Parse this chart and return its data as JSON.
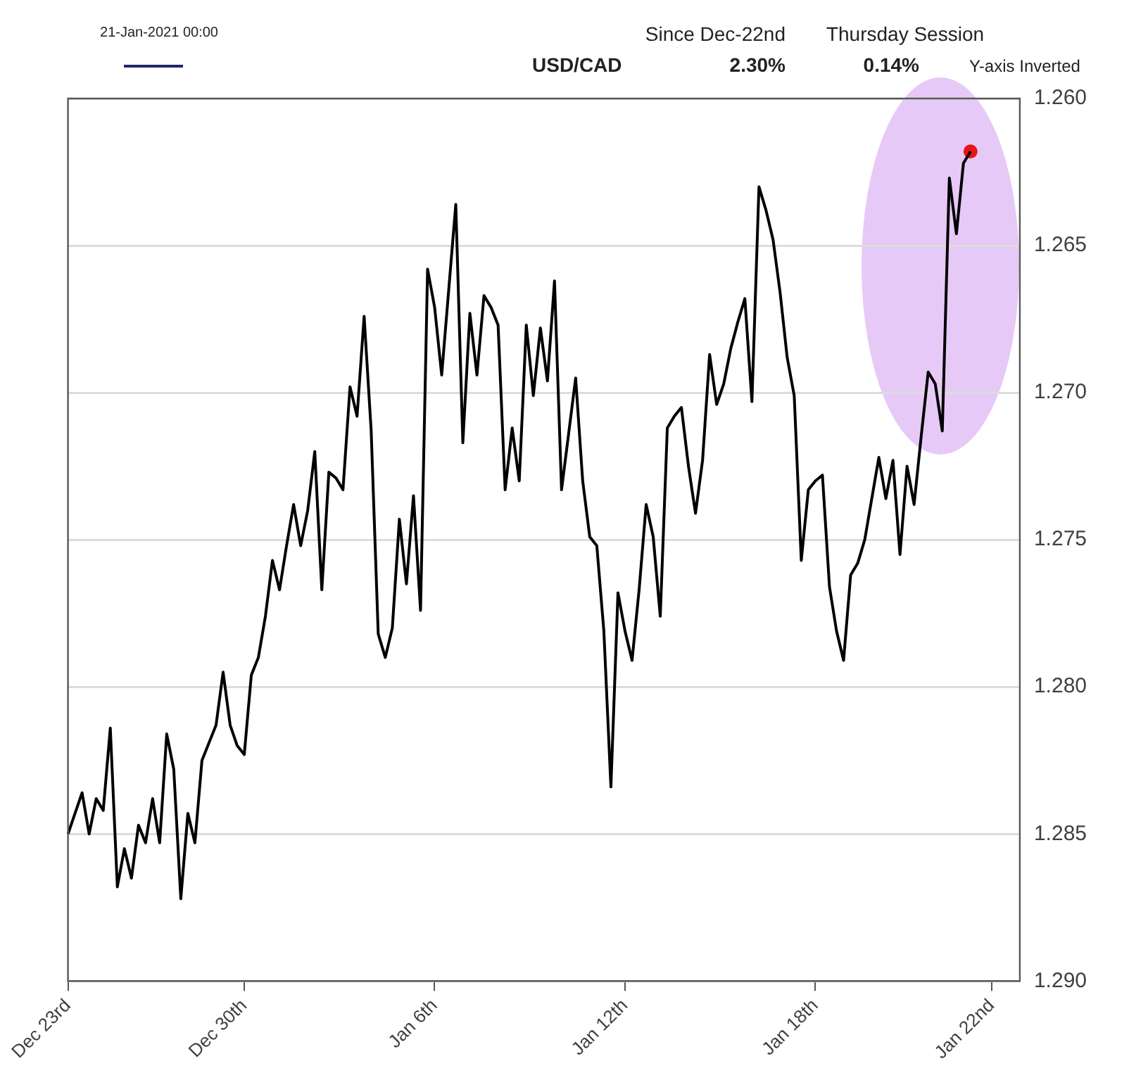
{
  "chart_data": {
    "type": "line",
    "annotations": [
      "21-Jan-2021 00:00",
      "Since Dec-22nd",
      "Thursday Session",
      "USD/CAD",
      "2.30%",
      "0.14%",
      "Y-axis Inverted"
    ],
    "categories": [
      "Dec 23rd",
      null,
      null,
      null,
      null,
      null,
      null,
      null,
      null,
      null,
      null,
      null,
      null,
      null,
      null,
      null,
      null,
      null,
      null,
      null,
      null,
      null,
      null,
      null,
      null,
      "Dec 30th",
      null,
      null,
      null,
      null,
      null,
      null,
      null,
      null,
      null,
      null,
      null,
      null,
      null,
      null,
      null,
      null,
      null,
      null,
      null,
      null,
      null,
      null,
      null,
      null,
      null,
      null,
      "Jan 6th",
      null,
      null,
      null,
      null,
      null,
      null,
      null,
      null,
      null,
      null,
      null,
      null,
      null,
      null,
      null,
      null,
      null,
      null,
      null,
      null,
      null,
      null,
      null,
      null,
      null,
      null,
      "Jan 12th",
      null,
      null,
      null,
      null,
      null,
      null,
      null,
      null,
      null,
      null,
      null,
      null,
      null,
      null,
      null,
      null,
      null,
      null,
      null,
      null,
      null,
      null,
      null,
      null,
      null,
      null,
      "Jan 18th",
      null,
      null,
      null,
      null,
      null,
      null,
      null,
      null,
      null,
      null,
      null,
      null,
      null,
      null,
      null,
      null,
      null,
      null,
      null,
      null,
      null,
      null,
      null,
      null,
      "Jan 22nd",
      null,
      null,
      null,
      null
    ],
    "series": [
      {
        "color": "#000000",
        "marker": "none",
        "values": [
          1.285,
          1.2843,
          1.2836,
          1.285,
          1.2838,
          1.2842,
          1.2814,
          1.2868,
          1.2855,
          1.2865,
          1.2847,
          1.2853,
          1.2838,
          1.2853,
          1.2816,
          1.2828,
          1.2872,
          1.2843,
          1.2853,
          1.2825,
          1.2819,
          1.2813,
          1.2795,
          1.2813,
          1.282,
          1.2823,
          1.2796,
          1.279,
          1.2776,
          1.2757,
          1.2767,
          1.2752,
          1.2738,
          1.2752,
          1.274,
          1.272,
          1.2767,
          1.2727,
          1.2729,
          1.2733,
          1.2698,
          1.2708,
          1.2674,
          1.2713,
          1.2782,
          1.279,
          1.278,
          1.2743,
          1.2765,
          1.2735,
          1.2774,
          1.2658,
          1.2671,
          1.2694,
          1.2665,
          1.2636,
          1.2717,
          1.2673,
          1.2694,
          1.2667,
          1.2671,
          1.2677,
          1.2733,
          1.2712,
          1.273,
          1.2677,
          1.2701,
          1.2678,
          1.2696,
          1.2662,
          1.2733,
          1.2714,
          1.2695,
          1.273,
          1.2749,
          1.2752,
          1.2781,
          1.2834,
          1.2768,
          1.2781,
          1.2791,
          1.2767,
          1.2738,
          1.2749,
          1.2776,
          1.2712,
          1.2708,
          1.2705,
          1.2725,
          1.2741,
          1.2723,
          1.2687,
          1.2704,
          1.2697,
          1.2685,
          1.2676,
          1.2668,
          1.2703,
          1.263,
          1.2638,
          1.2648,
          1.2666,
          1.2688,
          1.2701,
          1.2757,
          1.2733,
          1.273,
          1.2728,
          1.2766,
          1.2781,
          1.2791,
          1.2762,
          1.2758,
          1.275,
          1.2736,
          1.2722,
          1.2736,
          1.2723,
          1.2755,
          1.2725,
          1.2738,
          1.2715,
          1.2693,
          1.2697,
          1.2713,
          1.2627,
          1.2646,
          1.2622,
          1.2618,
          null,
          null,
          null,
          null,
          null,
          null,
          null
        ]
      },
      {
        "type": "scatter",
        "color": "#e8141c",
        "marker": "circle",
        "values": [
          null,
          null,
          null,
          null,
          null,
          null,
          null,
          null,
          null,
          null,
          null,
          null,
          null,
          null,
          null,
          null,
          null,
          null,
          null,
          null,
          null,
          null,
          null,
          null,
          null,
          null,
          null,
          null,
          null,
          null,
          null,
          null,
          null,
          null,
          null,
          null,
          null,
          null,
          null,
          null,
          null,
          null,
          null,
          null,
          null,
          null,
          null,
          null,
          null,
          null,
          null,
          null,
          null,
          null,
          null,
          null,
          null,
          null,
          null,
          null,
          null,
          null,
          null,
          null,
          null,
          null,
          null,
          null,
          null,
          null,
          null,
          null,
          null,
          null,
          null,
          null,
          null,
          null,
          null,
          null,
          null,
          null,
          null,
          null,
          null,
          null,
          null,
          null,
          null,
          null,
          null,
          null,
          null,
          null,
          null,
          null,
          null,
          null,
          null,
          null,
          null,
          null,
          null,
          null,
          null,
          null,
          null,
          null,
          null,
          null,
          null,
          null,
          null,
          null,
          null,
          null,
          null,
          null,
          null,
          null,
          null,
          null,
          null,
          null,
          null,
          null,
          null,
          null,
          1.2618,
          null,
          null,
          null,
          null,
          null,
          null,
          null
        ]
      }
    ],
    "ylim": [
      1.29,
      1.26
    ],
    "yticks": [
      {
        "value": 1.26,
        "label": "1.260"
      },
      {
        "value": 1.265,
        "label": "1.265"
      },
      {
        "value": 1.27,
        "label": "1.270"
      },
      {
        "value": 1.275,
        "label": "1.275"
      },
      {
        "value": 1.28,
        "label": "1.280"
      },
      {
        "value": 1.285,
        "label": "1.285"
      },
      {
        "value": 1.29,
        "label": "1.290"
      }
    ],
    "grid": "y",
    "legend": false
  }
}
